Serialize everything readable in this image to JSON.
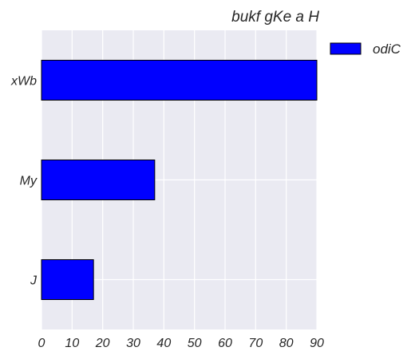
{
  "chart_data": {
    "type": "bar",
    "orientation": "horizontal",
    "title": "bukf gKe a H",
    "xlabel": "",
    "ylabel": "",
    "categories": [
      "J",
      "My",
      "xWb"
    ],
    "series": [
      {
        "name": "odiC",
        "values": [
          17,
          37,
          90
        ],
        "color": "#0000ff"
      }
    ],
    "xlim": [
      0,
      90
    ],
    "xticks": [
      0,
      10,
      20,
      30,
      40,
      50,
      60,
      70,
      80,
      90
    ],
    "grid": true,
    "legend_position": "outside-top-right",
    "colors": {
      "plot_background": "#eaeaf2",
      "grid": "#ffffff",
      "bar_edge": "#000000"
    }
  }
}
